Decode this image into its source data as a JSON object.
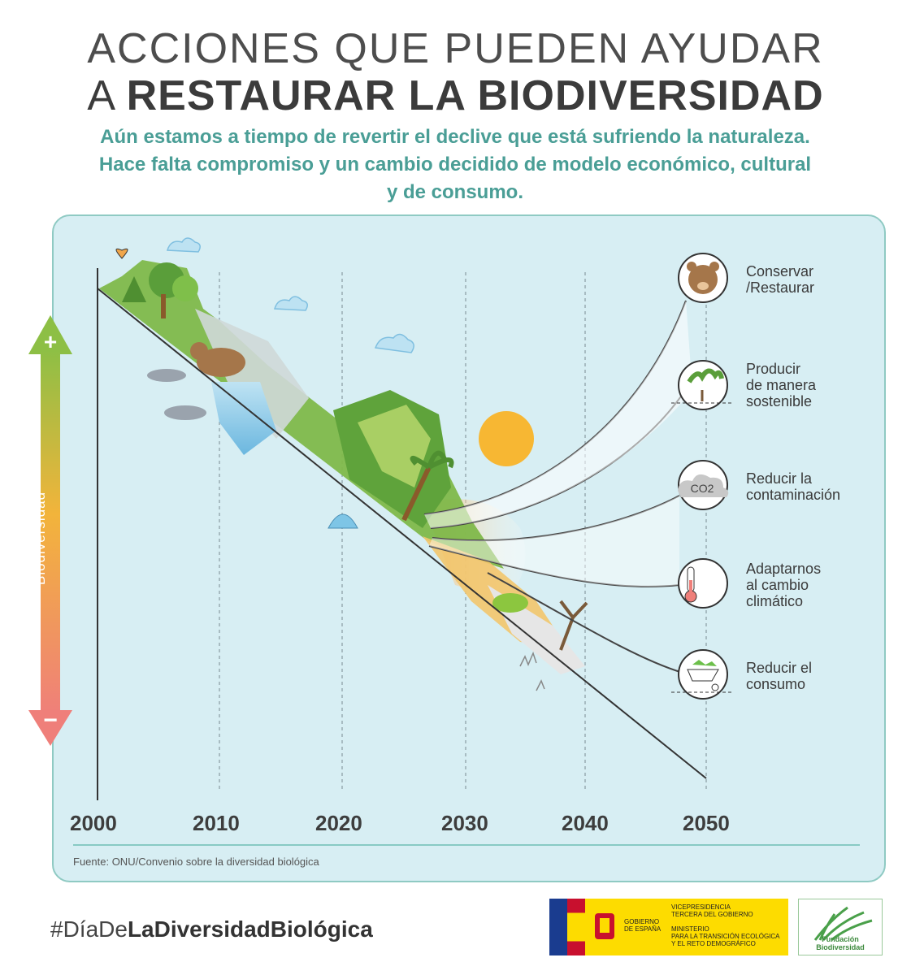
{
  "header": {
    "title_line1": "ACCIONES QUE PUEDEN AYUDAR",
    "title_line2_prefix": "A",
    "title_line2_bold": "RESTAURAR LA BIODIVERSIDAD",
    "subtitle": "Aún estamos a tiempo de revertir el declive que está sufriendo la naturaleza. Hace falta compromiso y un cambio decidido de modelo económico, cultural y de consumo."
  },
  "axis": {
    "y_label": "Biodiversidad",
    "plus": "+",
    "minus": "−",
    "years": [
      "2000",
      "2010",
      "2020",
      "2030",
      "2040",
      "2050"
    ]
  },
  "actions": [
    {
      "label": "Conservar\n/Restaurar",
      "icon": "bear-icon"
    },
    {
      "label": "Producir\nde manera\nsostenible",
      "icon": "sprout-icon"
    },
    {
      "label": "Reducir la\ncontaminación",
      "icon": "co2-cloud-icon",
      "icon_text": "CO2"
    },
    {
      "label": "Adaptarnos\nal cambio\nclimático",
      "icon": "thermometer-icon"
    },
    {
      "label": "Reducir el\nconsumo",
      "icon": "wheelbarrow-icon"
    }
  ],
  "source": "Fuente: ONU/Convenio sobre la diversidad biológica",
  "footer": {
    "hashtag_prefix": "#DíaDe",
    "hashtag_bold": "LaDiversidadBiológica",
    "gov_name": "GOBIERNO\nDE ESPAÑA",
    "gov_ministry": "VICEPRESIDENCIA\nTERCERA DEL GOBIERNO\n\nMINISTERIO\nPARA LA TRANSICIÓN ECOLÓGICA\nY EL RETO DEMOGRÁFICO",
    "foundation": "Fundación Biodiversidad"
  },
  "colors": {
    "teal": "#4a9e96",
    "panel_bg": "#d7eef3",
    "arrow_top": "#8dbf45",
    "arrow_bottom": "#ef7f7a",
    "sun": "#f7b733",
    "gov_yellow": "#fddc00"
  }
}
